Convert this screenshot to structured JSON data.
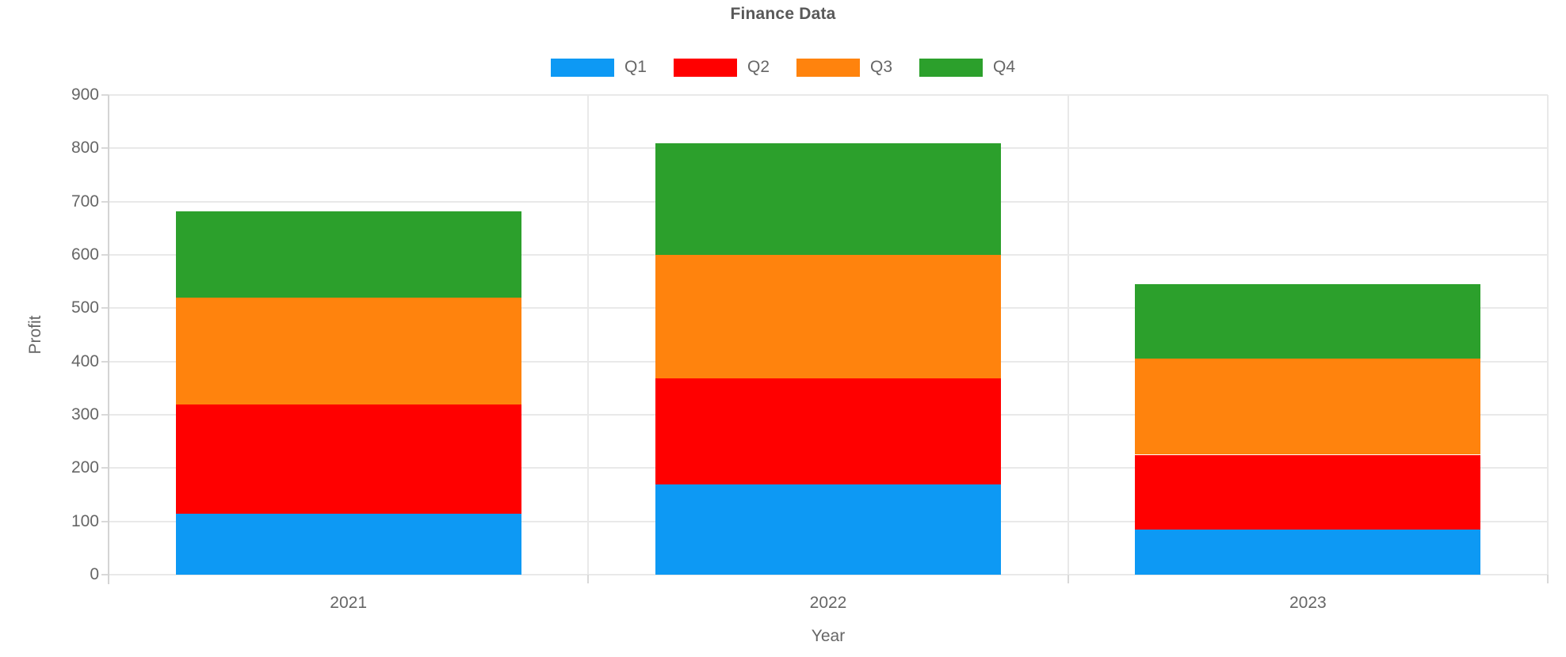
{
  "title": "Finance Data",
  "axes": {
    "x_label": "Year",
    "y_label": "Profit"
  },
  "legend": {
    "items": [
      {
        "label": "Q1",
        "color": "#0D99F4"
      },
      {
        "label": "Q2",
        "color": "#FF0000"
      },
      {
        "label": "Q3",
        "color": "#FF830D"
      },
      {
        "label": "Q4",
        "color": "#2CA02C"
      }
    ]
  },
  "colors": {
    "title_text": "#595959",
    "axis_text": "#666666",
    "gridline": "#e9e9e9",
    "axis_line": "#d4d4d4",
    "q1_blue": "#0D99F4",
    "q2_red": "#FF0000",
    "q3_orange": "#FF830D",
    "q4_green": "#2CA02C"
  },
  "y_tick_labels": [
    "0",
    "100",
    "200",
    "300",
    "400",
    "500",
    "600",
    "700",
    "800",
    "900"
  ],
  "chart_data": {
    "type": "bar",
    "stacked": true,
    "title": "Finance Data",
    "xlabel": "Year",
    "ylabel": "Profit",
    "categories": [
      "2021",
      "2022",
      "2023"
    ],
    "series": [
      {
        "name": "Q1",
        "color": "#0D99F4",
        "values": [
          115,
          170,
          85
        ]
      },
      {
        "name": "Q2",
        "color": "#FF0000",
        "values": [
          205,
          198,
          140
        ]
      },
      {
        "name": "Q3",
        "color": "#FF830D",
        "values": [
          200,
          232,
          180
        ]
      },
      {
        "name": "Q4",
        "color": "#2CA02C",
        "values": [
          162,
          210,
          140
        ]
      }
    ],
    "stack_totals": [
      682,
      810,
      545
    ],
    "ylim": [
      0,
      900
    ],
    "ytick_step": 100,
    "grid": true,
    "legend_position": "top"
  }
}
